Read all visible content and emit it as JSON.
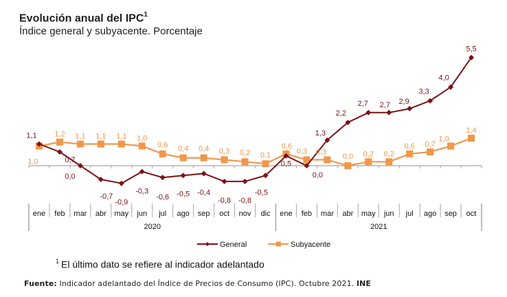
{
  "header": {
    "title": "Evolución anual del IPC",
    "title_sup": "1",
    "subtitle": "Índice general y subyacente. Porcentaje"
  },
  "footnote": {
    "sup": "1",
    "text": "El último dato se refiere al indicador adelantado"
  },
  "source": {
    "label": "Fuente:",
    "text": " Indicador adelantado del Índice de Precios de Consumo (IPC). Octubre 2021. ",
    "org": "INE"
  },
  "colors": {
    "general": "#7b1113",
    "subyacente": "#f0974a",
    "axis": "#a6a6a6"
  },
  "chart_data": {
    "type": "line",
    "title": "Evolución anual del IPC",
    "subtitle": "Índice general y subyacente. Porcentaje",
    "xlabel": "",
    "ylabel": "Porcentaje",
    "ylim": [
      -1.2,
      5.8
    ],
    "grid": false,
    "legend": "bottom-center",
    "categories": [
      "ene",
      "feb",
      "mar",
      "abr",
      "may",
      "jun",
      "jul",
      "ago",
      "sep",
      "oct",
      "nov",
      "dic",
      "ene",
      "feb",
      "mar",
      "abr",
      "may",
      "jun",
      "jul",
      "ago",
      "sep",
      "oct"
    ],
    "year_groups": [
      {
        "label": "2020",
        "count": 12
      },
      {
        "label": "2021",
        "count": 10
      }
    ],
    "series": [
      {
        "name": "General",
        "marker": "diamond",
        "values": [
          1.1,
          0.7,
          0.0,
          -0.7,
          -0.9,
          -0.3,
          -0.6,
          -0.5,
          -0.4,
          -0.8,
          -0.8,
          -0.5,
          0.5,
          0.0,
          1.3,
          2.2,
          2.7,
          2.7,
          2.9,
          3.3,
          4.0,
          5.5
        ],
        "labels": [
          "1,1",
          "0,7",
          "0,0",
          "-0,7",
          "-0,9",
          "-0,3",
          "-0,6",
          "-0,5",
          "-0,4",
          "-0,8",
          "-0,8",
          "-0,5",
          "0,5",
          "0,0",
          "1,3",
          "2,2",
          "2,7",
          "2,7",
          "2,9",
          "3,3",
          "4,0",
          "5,5"
        ]
      },
      {
        "name": "Subyacente",
        "marker": "square",
        "values": [
          1.0,
          1.2,
          1.1,
          1.1,
          1.1,
          1.0,
          0.6,
          0.4,
          0.4,
          0.3,
          0.2,
          0.1,
          0.6,
          0.3,
          0.3,
          0.0,
          0.2,
          0.2,
          0.6,
          0.7,
          1.0,
          1.4
        ],
        "labels": [
          "1,0",
          "1,2",
          "1,1",
          "1,1",
          "1,1",
          "1,0",
          "0,6",
          "0,4",
          "0,4",
          "0,3",
          "0,2",
          "0,1",
          "0,6",
          "0,3",
          "0,3",
          "0,0",
          "0,2",
          "0,2",
          "0,6",
          "0,7",
          "1,0",
          "1,4"
        ]
      }
    ]
  }
}
